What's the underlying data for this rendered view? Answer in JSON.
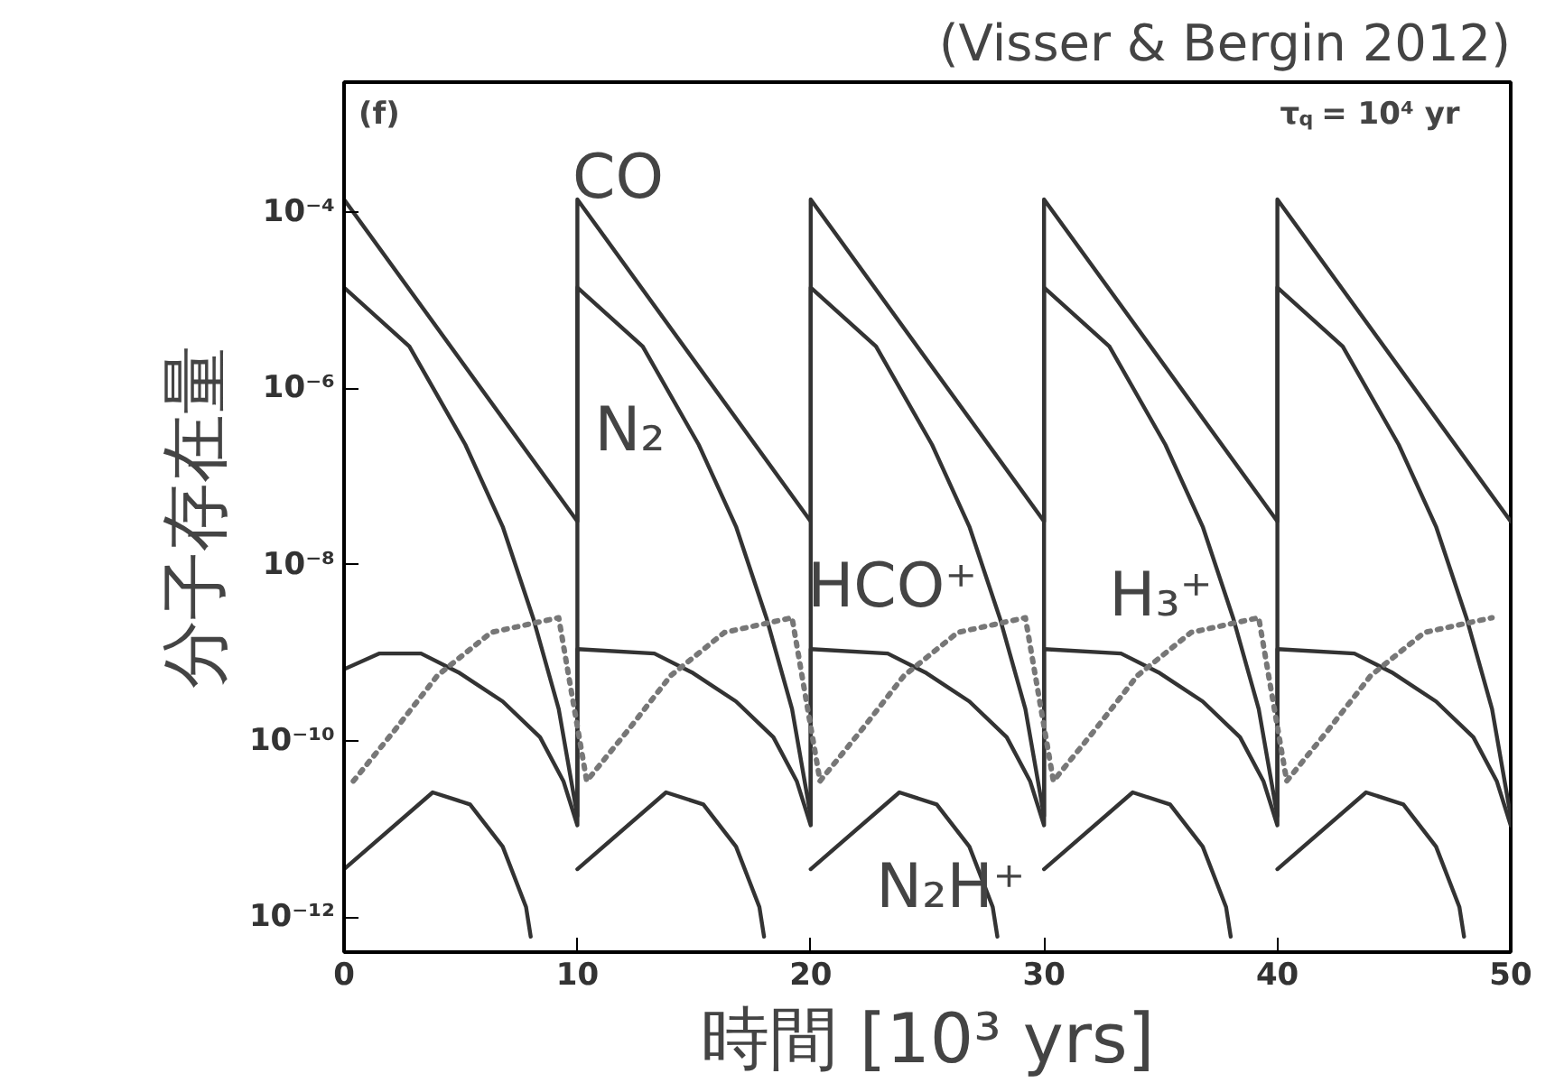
{
  "chart_data": {
    "type": "line",
    "xlabel": "時間 [10³ yrs]",
    "ylabel": "分子存在量",
    "log": "y",
    "grid": false,
    "marker": "none",
    "xlim": [
      0,
      50
    ],
    "xticks": [
      0,
      10,
      20,
      30,
      40,
      50
    ],
    "ylim": [
      4e-13,
      0.003
    ],
    "yticks": [
      {
        "value": 0.0001,
        "label": "10⁻⁴"
      },
      {
        "value": 1e-06,
        "label": "10⁻⁶"
      },
      {
        "value": 1e-08,
        "label": "10⁻⁸"
      },
      {
        "value": 1e-10,
        "label": "10⁻¹⁰"
      },
      {
        "value": 1e-12,
        "label": "10⁻¹²"
      }
    ],
    "series": [
      {
        "color": "#333333",
        "line_style": "solid",
        "x": [
          0,
          10,
          10,
          20,
          20,
          30,
          30,
          40,
          40,
          50
        ],
        "values": [
          0.00014,
          3.1e-08,
          0.00014,
          3.1e-08,
          0.00014,
          3.1e-08,
          0.00014,
          3.1e-08,
          0.00014,
          3.1e-08
        ]
      },
      {
        "color": "#333333",
        "line_style": "solid",
        "x": [
          0,
          2.8,
          5.2,
          6.8,
          8.1,
          9.2,
          10,
          10,
          12.8,
          15.2,
          16.8,
          18.1,
          19.2,
          20,
          20,
          22.8,
          25.2,
          26.8,
          28.1,
          29.2,
          30,
          30,
          32.8,
          35.2,
          36.8,
          38.1,
          39.2,
          40,
          40,
          42.8,
          45.2,
          46.8,
          48.1,
          49.2,
          50
        ],
        "values": [
          1.4e-05,
          3e-06,
          2.3e-07,
          2.7e-08,
          2.5e-09,
          2.3e-10,
          1.4e-11,
          1.4e-05,
          3e-06,
          2.3e-07,
          2.7e-08,
          2.5e-09,
          2.3e-10,
          1.4e-11,
          1.4e-05,
          3e-06,
          2.3e-07,
          2.7e-08,
          2.5e-09,
          2.3e-10,
          1.4e-11,
          1.4e-05,
          3e-06,
          2.3e-07,
          2.7e-08,
          2.5e-09,
          2.3e-10,
          1.4e-11,
          1.4e-05,
          3e-06,
          2.3e-07,
          2.7e-08,
          2.5e-09,
          2.3e-10,
          1.4e-11
        ]
      },
      {
        "color": "#333333",
        "line_style": "solid",
        "x": [
          0,
          1.5,
          3.3,
          4.9,
          6.8,
          8.4,
          9.4,
          10,
          10,
          13.3,
          14.9,
          16.8,
          18.4,
          19.4,
          20,
          20,
          23.3,
          24.9,
          26.8,
          28.4,
          29.4,
          30,
          30,
          33.3,
          34.9,
          36.8,
          38.4,
          39.4,
          40,
          40,
          43.3,
          44.9,
          46.8,
          48.4,
          49.4,
          50
        ],
        "values": [
          6.5e-10,
          9.8e-10,
          9.8e-10,
          6e-10,
          2.8e-10,
          1.1e-10,
          3.5e-11,
          1.1e-11,
          1.1e-09,
          9.8e-10,
          6e-10,
          2.8e-10,
          1.1e-10,
          3.5e-11,
          1.1e-11,
          1.1e-09,
          9.8e-10,
          6e-10,
          2.8e-10,
          1.1e-10,
          3.5e-11,
          1.1e-11,
          1.1e-09,
          9.8e-10,
          6e-10,
          2.8e-10,
          1.1e-10,
          3.5e-11,
          1.1e-11,
          1.1e-09,
          9.8e-10,
          6e-10,
          2.8e-10,
          1.1e-10,
          3.5e-11,
          1.1e-11
        ]
      },
      {
        "color": "#777777",
        "line_style": "dotted",
        "x": [
          0.4,
          2.2,
          4.0,
          6.3,
          9.2,
          10.4,
          12.2,
          14.0,
          16.3,
          19.2,
          20.4,
          22.2,
          24.0,
          26.3,
          29.2,
          30.4,
          32.2,
          34.0,
          36.3,
          39.2,
          40.4,
          42.2,
          44.0,
          46.3,
          49.2
        ],
        "values": [
          3.5e-11,
          1.35e-10,
          5.5e-10,
          1.7e-09,
          2.5e-09,
          3.5e-11,
          1.35e-10,
          5.5e-10,
          1.7e-09,
          2.5e-09,
          3.5e-11,
          1.35e-10,
          5.5e-10,
          1.7e-09,
          2.5e-09,
          3.5e-11,
          1.35e-10,
          5.5e-10,
          1.7e-09,
          2.5e-09,
          3.5e-11,
          1.35e-10,
          5.5e-10,
          1.7e-09,
          2.5e-09
        ]
      },
      {
        "color": "#333333",
        "line_style": "solid",
        "x": [
          0,
          3.8,
          5.4,
          6.8,
          7.8,
          8.0,
          9,
          10,
          13.8,
          15.4,
          16.8,
          17.8,
          18.0,
          19,
          20,
          23.8,
          25.4,
          26.8,
          27.8,
          28.0,
          29,
          30,
          33.8,
          35.4,
          36.8,
          37.8,
          38.0,
          39,
          40,
          43.8,
          45.4,
          46.8,
          47.8,
          48.0
        ],
        "values": [
          3.5e-12,
          2.6e-11,
          1.9e-11,
          6.3e-12,
          1.3e-12,
          6e-13,
          null,
          3.5e-12,
          2.6e-11,
          1.9e-11,
          6.3e-12,
          1.3e-12,
          6e-13,
          null,
          3.5e-12,
          2.6e-11,
          1.9e-11,
          6.3e-12,
          1.3e-12,
          6e-13,
          null,
          3.5e-12,
          2.6e-11,
          1.9e-11,
          6.3e-12,
          1.3e-12,
          6e-13,
          null,
          3.5e-12,
          2.6e-11,
          1.9e-11,
          6.3e-12,
          1.3e-12,
          6e-13
        ]
      }
    ],
    "annotations": [
      "(f)",
      "τ$_{q}$ = 10⁴ yr",
      "(Visser & Bergin 2012)",
      "CO",
      "N₂",
      "HCO⁺",
      "H₃⁺",
      "N₂H⁺"
    ]
  }
}
